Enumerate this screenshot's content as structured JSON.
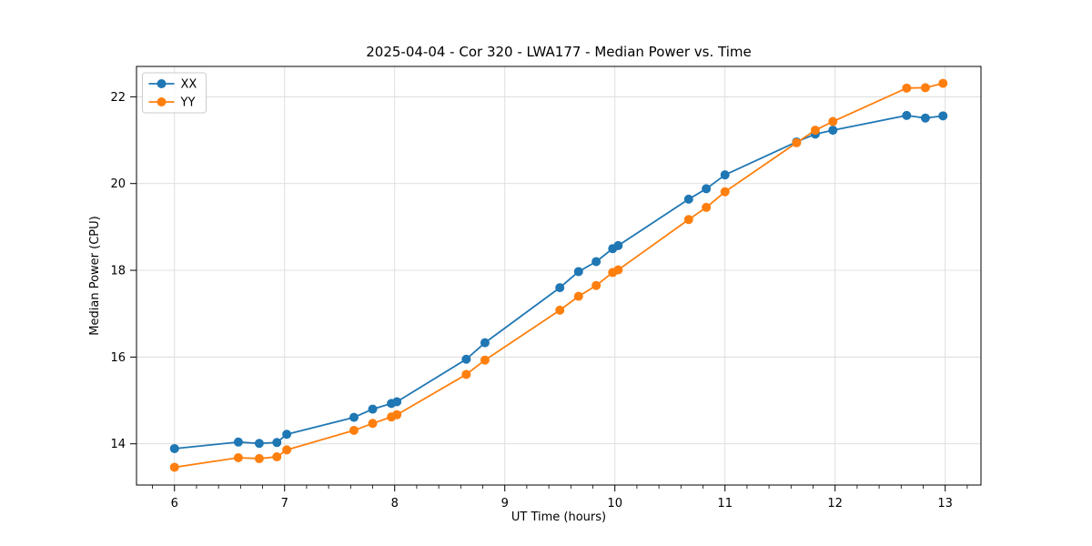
{
  "chart_data": {
    "type": "line",
    "title": "2025-04-04 - Cor 320 - LWA177 - Median Power vs. Time",
    "xlabel": "UT Time (hours)",
    "ylabel": "Median Power (CPU)",
    "xlim": [
      5.655,
      13.325
    ],
    "ylim": [
      13.05,
      22.7
    ],
    "xticks": [
      6,
      7,
      8,
      9,
      10,
      11,
      12,
      13
    ],
    "yticks": [
      14,
      16,
      18,
      20,
      22
    ],
    "x_minor_tick_step": 0.2,
    "grid": "on",
    "legend": {
      "position": "upper-left",
      "entries": [
        "XX",
        "YY"
      ]
    },
    "x": [
      6.0,
      6.58,
      6.77,
      6.93,
      7.02,
      7.63,
      7.8,
      7.97,
      8.02,
      8.65,
      8.82,
      9.5,
      9.67,
      9.83,
      9.98,
      10.03,
      10.67,
      10.83,
      11.0,
      11.65,
      11.82,
      11.98,
      12.65,
      12.82,
      12.98
    ],
    "series": [
      {
        "name": "XX",
        "color": "#1f77b4",
        "values": [
          13.89,
          14.04,
          14.01,
          14.03,
          14.22,
          14.61,
          14.8,
          14.93,
          14.97,
          15.95,
          16.33,
          17.6,
          17.97,
          18.2,
          18.5,
          18.57,
          19.64,
          19.88,
          20.2,
          20.96,
          21.14,
          21.23,
          21.57,
          21.51,
          21.56
        ]
      },
      {
        "name": "YY",
        "color": "#ff7f0e",
        "values": [
          13.46,
          13.68,
          13.66,
          13.7,
          13.86,
          14.31,
          14.47,
          14.62,
          14.67,
          15.6,
          15.93,
          17.08,
          17.4,
          17.65,
          17.95,
          18.01,
          19.17,
          19.45,
          19.81,
          20.94,
          21.23,
          21.43,
          22.2,
          22.21,
          22.31
        ]
      }
    ],
    "style": {
      "grid_color": "#dcdcdc",
      "spine_color": "#000000",
      "legend_border_color": "#cccccc",
      "background": "#ffffff",
      "line_width": 1.8,
      "marker_radius": 5
    }
  }
}
